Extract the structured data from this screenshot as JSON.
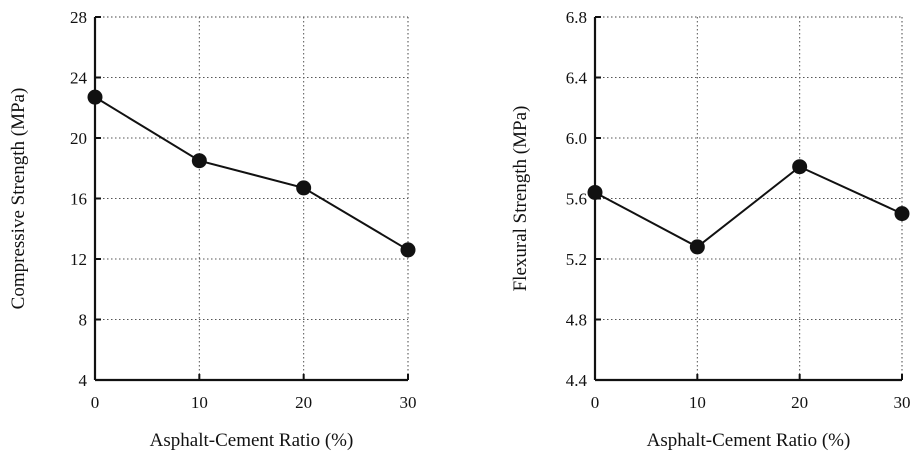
{
  "chart_data": [
    {
      "type": "line",
      "xlabel": "Asphalt-Cement Ratio (%)",
      "ylabel": "Compressive Strength (MPa)",
      "x": [
        0,
        10,
        20,
        30
      ],
      "values": [
        22.7,
        18.5,
        16.7,
        12.6
      ],
      "xlim": [
        0,
        30
      ],
      "ylim": [
        4,
        28
      ],
      "xticks": [
        "0",
        "10",
        "20",
        "30"
      ],
      "yticks": [
        "4",
        "8",
        "12",
        "16",
        "20",
        "24",
        "28"
      ],
      "grid": true
    },
    {
      "type": "line",
      "xlabel": "Asphalt-Cement Ratio (%)",
      "ylabel": "Flexural Strength (MPa)",
      "x": [
        0,
        10,
        20,
        30
      ],
      "values": [
        5.64,
        5.28,
        5.81,
        5.5
      ],
      "xlim": [
        0,
        30
      ],
      "ylim": [
        4.4,
        6.8
      ],
      "xticks": [
        "0",
        "10",
        "20",
        "30"
      ],
      "yticks": [
        "4.4",
        "4.8",
        "5.2",
        "5.6",
        "6.0",
        "6.4",
        "6.8"
      ],
      "grid": true
    }
  ]
}
